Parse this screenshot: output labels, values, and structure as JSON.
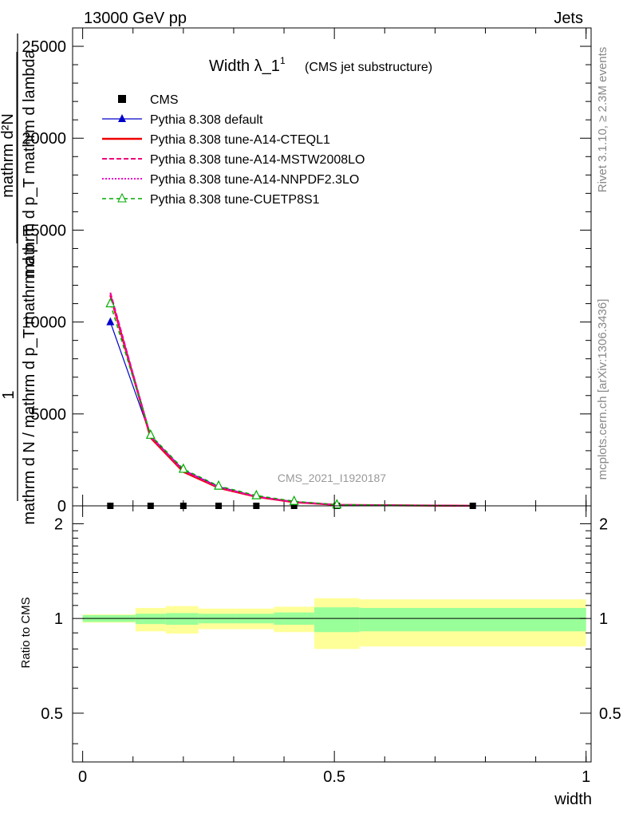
{
  "header": {
    "energy": "13000 GeV pp",
    "category": "Jets"
  },
  "side": {
    "rivet": "Rivet 3.1.10, ≥ 2.3M events",
    "mcplots": "mcplots.cern.ch [arXiv:1306.3436]"
  },
  "chart_data": [
    {
      "type": "line",
      "title": "Width λ_1",
      "title_sup": "1",
      "subtitle": "(CMS jet substructure)",
      "watermark": "CMS_2021_I1920187",
      "ylabel_num": "mathrm d²N",
      "ylabel_num_line2": "mathrm d p_T mathrm d lambda",
      "ylabel_den": "mathrm d N / mathrm d p_T mathrm d p_T",
      "ylabel_one": "1",
      "xlim": [
        -0.02,
        1.01
      ],
      "ylim": [
        0,
        26000
      ],
      "yticks": [
        0,
        5000,
        10000,
        15000,
        20000,
        25000
      ],
      "ytick_labels": [
        "0",
        "5000",
        "10000",
        "15000",
        "20000",
        "25000"
      ],
      "legend_placement": "top-left",
      "x": [
        0.055,
        0.135,
        0.2,
        0.27,
        0.345,
        0.42,
        0.505,
        0.775
      ],
      "series": [
        {
          "name": "CMS",
          "color": "#000000",
          "style": "marker-square",
          "values": [
            0,
            0,
            0,
            0,
            0,
            0,
            0,
            0
          ]
        },
        {
          "name": "Pythia 8.308 default",
          "color": "#0000cc",
          "style": "solid-triangle",
          "values": [
            10000,
            3800,
            1950,
            1050,
            520,
            220,
            55,
            2
          ]
        },
        {
          "name": "Pythia 8.308 tune-A14-CTEQL1",
          "color": "#ee0000",
          "style": "solid-thick",
          "values": [
            11450,
            3700,
            1850,
            980,
            490,
            200,
            50,
            2
          ]
        },
        {
          "name": "Pythia 8.308 tune-A14-MSTW2008LO",
          "color": "#ee0077",
          "style": "dashed",
          "values": [
            11600,
            3750,
            1900,
            1000,
            500,
            210,
            52,
            2
          ]
        },
        {
          "name": "Pythia 8.308 tune-A14-NNPDF2.3LO",
          "color": "#ee00cc",
          "style": "dotted",
          "values": [
            11500,
            3800,
            1950,
            1020,
            510,
            215,
            53,
            2
          ]
        },
        {
          "name": "Pythia 8.308 tune-CUETP8S1",
          "color": "#00aa00",
          "style": "dashed-open-triangle",
          "values": [
            11000,
            3850,
            2000,
            1080,
            560,
            250,
            60,
            2
          ]
        }
      ]
    },
    {
      "type": "area",
      "ylabel": "Ratio to CMS",
      "xlabel": "width",
      "xlim": [
        -0.02,
        1.01
      ],
      "ylim": [
        0.35,
        2.28
      ],
      "yticks": [
        0.5,
        1,
        2
      ],
      "ytick_labels": [
        "0.5",
        "1",
        "2"
      ],
      "xticks": [
        0,
        0.5,
        1
      ],
      "xtick_labels": [
        "0",
        "0.5",
        "1"
      ],
      "bins": [
        {
          "lo": 0.0,
          "hi": 0.105,
          "stat_lo": 0.975,
          "stat_hi": 1.025,
          "tot_lo": 0.97,
          "tot_hi": 1.03
        },
        {
          "lo": 0.105,
          "hi": 0.165,
          "stat_lo": 0.96,
          "stat_hi": 1.035,
          "tot_lo": 0.91,
          "tot_hi": 1.08
        },
        {
          "lo": 0.165,
          "hi": 0.23,
          "stat_lo": 0.955,
          "stat_hi": 1.04,
          "tot_lo": 0.895,
          "tot_hi": 1.095
        },
        {
          "lo": 0.23,
          "hi": 0.305,
          "stat_lo": 0.965,
          "stat_hi": 1.035,
          "tot_lo": 0.925,
          "tot_hi": 1.075
        },
        {
          "lo": 0.305,
          "hi": 0.38,
          "stat_lo": 0.965,
          "stat_hi": 1.035,
          "tot_lo": 0.925,
          "tot_hi": 1.075
        },
        {
          "lo": 0.38,
          "hi": 0.46,
          "stat_lo": 0.955,
          "stat_hi": 1.045,
          "tot_lo": 0.905,
          "tot_hi": 1.09
        },
        {
          "lo": 0.46,
          "hi": 0.55,
          "stat_lo": 0.905,
          "stat_hi": 1.085,
          "tot_lo": 0.8,
          "tot_hi": 1.16
        },
        {
          "lo": 0.55,
          "hi": 1.0,
          "stat_lo": 0.91,
          "stat_hi": 1.08,
          "tot_lo": 0.815,
          "tot_hi": 1.15
        }
      ],
      "colors": {
        "stat": "#99ff99",
        "total": "#ffff99"
      }
    }
  ]
}
